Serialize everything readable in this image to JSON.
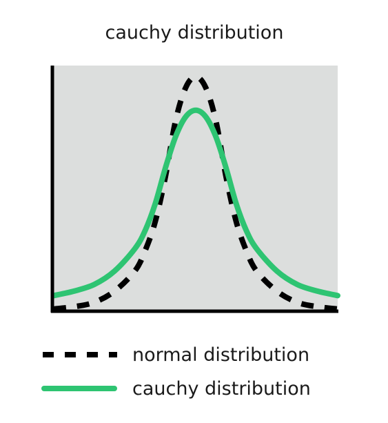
{
  "chart_data": {
    "type": "line",
    "title": "cauchy distribution",
    "xlabel": "",
    "ylabel": "",
    "grid": false,
    "legend_placement": "bottom",
    "axis_ticks_visible": false,
    "x": [
      -7,
      -6,
      -5,
      -4,
      -3,
      -2.5,
      -2,
      -1.5,
      -1,
      -0.5,
      0,
      0.5,
      1,
      1.5,
      2,
      2.5,
      3,
      4,
      5,
      6,
      7
    ],
    "series": [
      {
        "name": "normal distribution",
        "style": "dashed",
        "color": "#000000",
        "values": [
          0.01,
          0.02,
          0.04,
          0.09,
          0.18,
          0.27,
          0.4,
          0.6,
          0.85,
          1.0,
          1.05,
          1.0,
          0.85,
          0.6,
          0.4,
          0.27,
          0.18,
          0.09,
          0.04,
          0.02,
          0.01
        ]
      },
      {
        "name": "cauchy distribution",
        "style": "solid",
        "color": "#2ec472",
        "values": [
          0.07,
          0.09,
          0.12,
          0.18,
          0.28,
          0.36,
          0.48,
          0.64,
          0.78,
          0.87,
          0.9,
          0.87,
          0.78,
          0.64,
          0.48,
          0.36,
          0.28,
          0.18,
          0.12,
          0.09,
          0.07
        ]
      }
    ],
    "xlim": [
      -7,
      7
    ],
    "ylim": [
      0,
      1.1
    ],
    "colors": {
      "plot_background": "#dcdedd",
      "axis": "#000000",
      "text": "#1a1a1a"
    }
  }
}
